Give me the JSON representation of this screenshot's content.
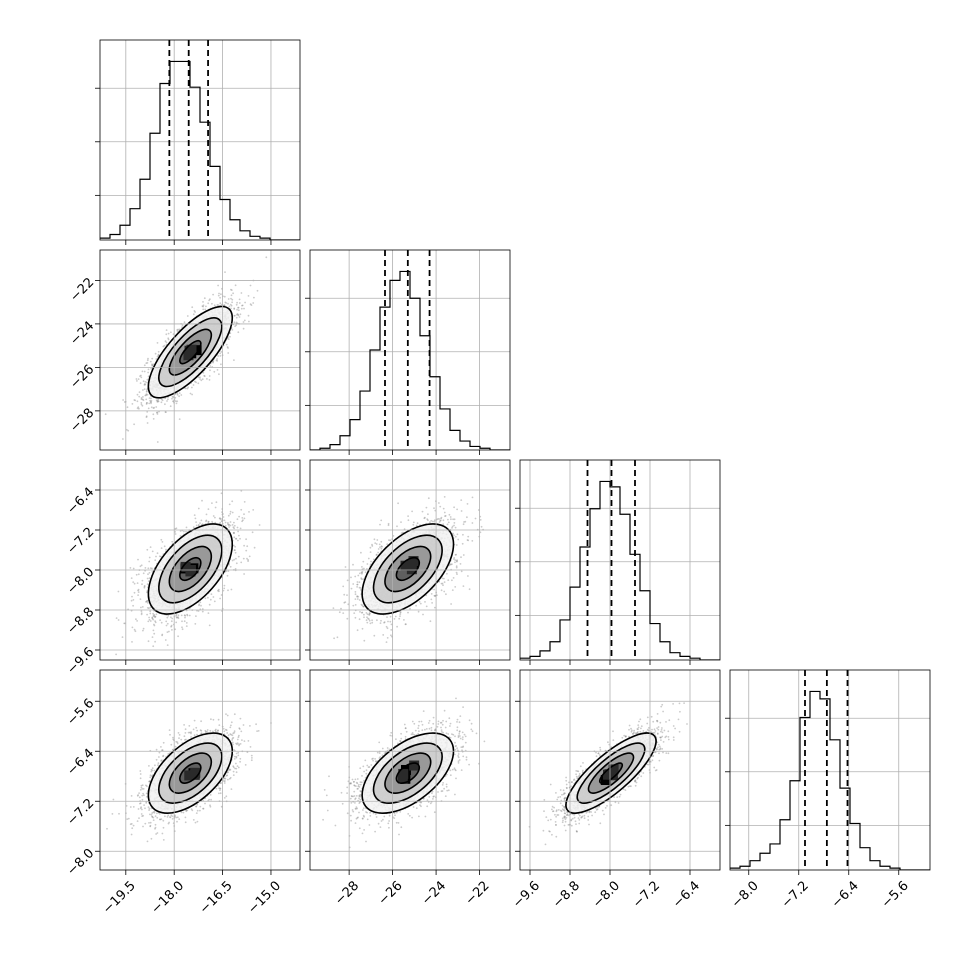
{
  "chart_data": {
    "type": "corner",
    "grid": true,
    "parameters": [
      {
        "range": [
          -20.3,
          -14.1
        ],
        "ticks": [
          -19.5,
          -18.0,
          -16.5,
          -15.0
        ],
        "tick_labels": [
          "−19.5",
          "−18.0",
          "−16.5",
          "−15.0"
        ],
        "mean": -17.5,
        "std": 0.65
      },
      {
        "range": [
          -29.8,
          -20.6
        ],
        "ticks": [
          -28,
          -26,
          -24,
          -22
        ],
        "tick_labels": [
          "−28",
          "−26",
          "−24",
          "−22"
        ],
        "mean": -25.3,
        "std": 1.05
      },
      {
        "range": [
          -9.8,
          -5.8
        ],
        "ticks": [
          -9.6,
          -8.8,
          -8.0,
          -7.2,
          -6.4
        ],
        "tick_labels": [
          "−9.6",
          "−8.8",
          "−8.0",
          "−7.2",
          "−6.4"
        ],
        "mean": -7.98,
        "std": 0.45
      },
      {
        "range": [
          -8.3,
          -5.1
        ],
        "ticks": [
          -8.0,
          -7.2,
          -6.4,
          -5.6
        ],
        "tick_labels": [
          "−8.0",
          "−7.2",
          "−6.4",
          "−5.6"
        ],
        "mean": -6.75,
        "std": 0.32
      }
    ],
    "histograms": [
      {
        "bin_start": -20.3,
        "bin_width": 0.31,
        "counts": [
          1,
          3,
          8,
          17,
          33,
          58,
          85,
          97,
          97,
          83,
          64,
          40,
          22,
          11,
          5,
          2,
          1,
          0,
          0,
          0
        ],
        "quantiles": [
          -18.15,
          -17.55,
          -16.95
        ]
      },
      {
        "bin_start": -29.8,
        "bin_width": 0.46,
        "counts": [
          0,
          1,
          3,
          8,
          17,
          33,
          56,
          80,
          95,
          100,
          85,
          64,
          41,
          23,
          11,
          5,
          2,
          1,
          0,
          0
        ],
        "quantiles": [
          -26.35,
          -25.3,
          -24.3
        ]
      },
      {
        "bin_start": -9.8,
        "bin_width": 0.2,
        "counts": [
          1,
          2,
          5,
          10,
          22,
          40,
          62,
          83,
          98,
          95,
          80,
          58,
          38,
          20,
          10,
          4,
          2,
          1,
          0,
          0
        ],
        "quantiles": [
          -8.45,
          -7.97,
          -7.5
        ]
      },
      {
        "bin_start": -8.3,
        "bin_width": 0.16,
        "counts": [
          1,
          2,
          5,
          9,
          14,
          27,
          48,
          82,
          96,
          92,
          70,
          44,
          25,
          12,
          5,
          2,
          1,
          0,
          0,
          0
        ],
        "quantiles": [
          -7.1,
          -6.75,
          -6.42
        ]
      }
    ],
    "correlations": {
      "1-0": 0.75,
      "2-0": 0.55,
      "2-1": 0.55,
      "3-0": 0.55,
      "3-1": 0.55,
      "3-2": 0.8
    }
  }
}
